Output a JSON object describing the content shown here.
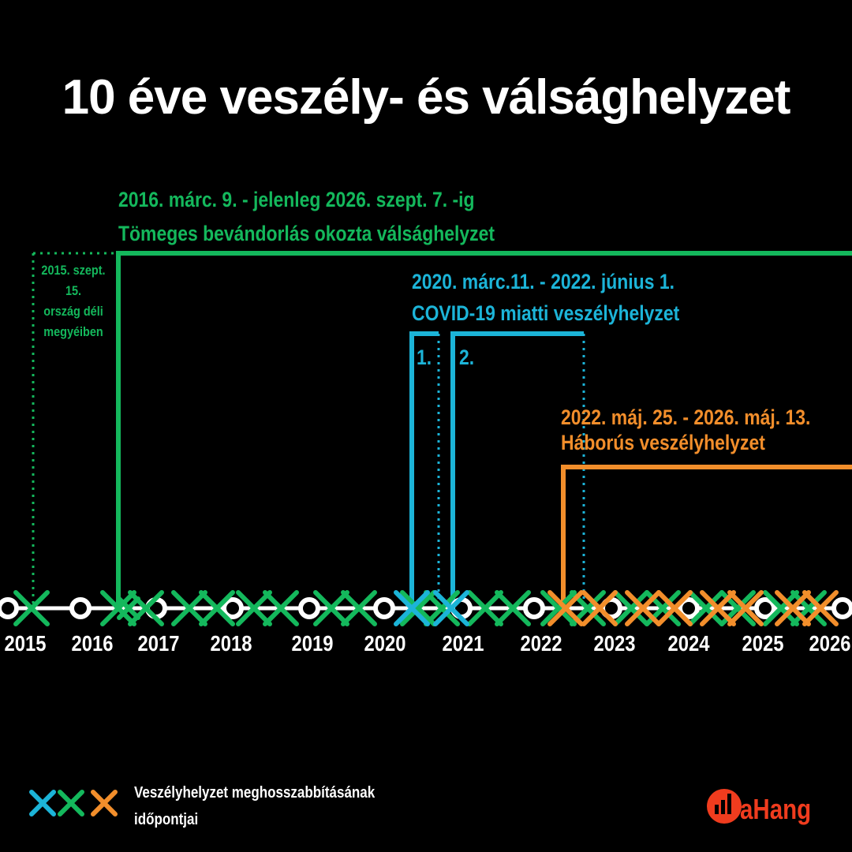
{
  "title": "10 éve veszély- és válsághelyzet",
  "colors": {
    "migration": "#14b85c",
    "covid": "#1cb4d8",
    "war": "#f28e2b",
    "logo": "#f03c1e"
  },
  "migration": {
    "dates": "2016. márc. 9. - jelenleg 2026. szept. 7. -ig",
    "name": "Tömeges bevándorlás okozta válsághelyzet",
    "early_note": [
      "2015. szept.",
      "15.",
      "ország déli",
      "megyéiben"
    ]
  },
  "covid": {
    "dates": "2020. márc.11. - 2022. június 1.",
    "name": "COVID-19 miatti veszélyhelyzet",
    "phase1": "1.",
    "phase2": "2."
  },
  "war": {
    "dates": "2022. máj. 25. - 2026. máj. 13.",
    "name": "Háborús veszélyhelyzet"
  },
  "years": [
    "2015",
    "2016",
    "2017",
    "2018",
    "2019",
    "2020",
    "2021",
    "2022",
    "2023",
    "2024",
    "2025",
    "2026"
  ],
  "legend": {
    "text": "Veszélyhelyzet meghosszabbításának időpontjai"
  },
  "logo": {
    "text": "aHang"
  }
}
